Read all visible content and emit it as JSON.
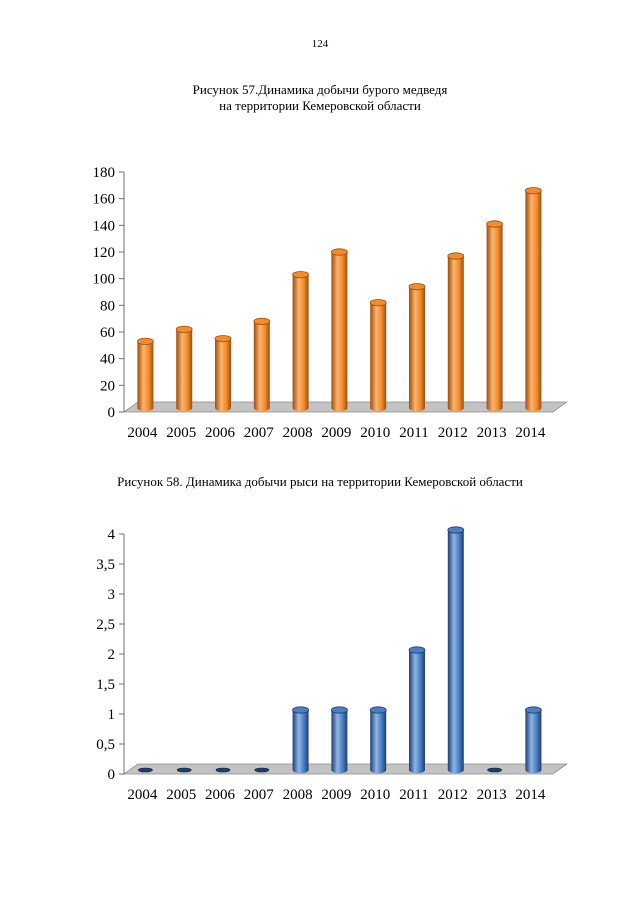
{
  "page_number": "124",
  "figure57": {
    "caption_line1": "Рисунок 57.Динамика добычи бурого медведя",
    "caption_line2": "на территории Кемеровской области"
  },
  "figure58": {
    "caption": "Рисунок 58. Динамика добычи рыси на территории Кемеровской области"
  },
  "colors": {
    "bear_light": "#fbb470",
    "bear_mid": "#f58c2c",
    "bear_dark": "#9c4e0c",
    "lynx_light": "#8fb5e6",
    "lynx_mid": "#4a7fc4",
    "lynx_dark": "#1f3f70",
    "floor": "#c3c3c3",
    "floor_edge": "#8c8c8c",
    "axis": "#707070"
  },
  "chart_data": [
    {
      "id": "bear",
      "type": "bar",
      "title": "Рисунок 57.Динамика добычи бурого медведя на территории Кемеровской области",
      "categories": [
        "2004",
        "2005",
        "2006",
        "2007",
        "2008",
        "2009",
        "2010",
        "2011",
        "2012",
        "2013",
        "2014"
      ],
      "values": [
        50,
        59,
        52,
        65,
        100,
        117,
        79,
        91,
        114,
        138,
        163
      ],
      "ylim": [
        0,
        180
      ],
      "yticks": [
        "0",
        "20",
        "40",
        "60",
        "80",
        "100",
        "120",
        "140",
        "160",
        "180"
      ],
      "xlabel": "",
      "ylabel": "",
      "grid": false,
      "legend": "none"
    },
    {
      "id": "lynx",
      "type": "bar",
      "title": "Рисунок 58. Динамика добычи рыси на территории Кемеровской области",
      "categories": [
        "2004",
        "2005",
        "2006",
        "2007",
        "2008",
        "2009",
        "2010",
        "2011",
        "2012",
        "2013",
        "2014"
      ],
      "values": [
        0,
        0,
        0,
        0,
        1,
        1,
        1,
        2,
        4,
        0,
        1
      ],
      "ylim": [
        0,
        4
      ],
      "yticks": [
        "0",
        "0,5",
        "1",
        "1,5",
        "2",
        "2,5",
        "3",
        "3,5",
        "4"
      ],
      "xlabel": "",
      "ylabel": "",
      "grid": false,
      "legend": "none"
    }
  ]
}
